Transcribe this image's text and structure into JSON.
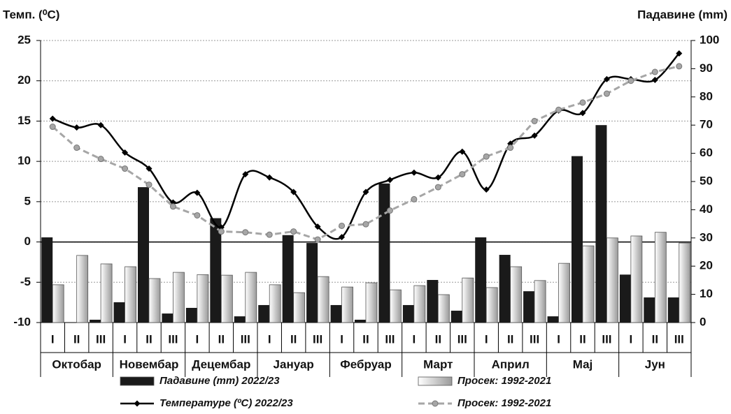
{
  "chart_data": {
    "type": "combo",
    "y_title": "Темп. (⁰C)",
    "y2_title": "Падавине (mm)",
    "categories": [
      "I",
      "II",
      "III",
      "I",
      "II",
      "III",
      "I",
      "II",
      "III",
      "I",
      "II",
      "III",
      "I",
      "II",
      "III",
      "I",
      "II",
      "III",
      "I",
      "II",
      "III",
      "I",
      "II",
      "III",
      "I",
      "II",
      "III"
    ],
    "category_groups": [
      "Октобар",
      "Новембар",
      "Децембар",
      "Јануар",
      "Фебруар",
      "Март",
      "Април",
      "Мај",
      "Јун"
    ],
    "ylim": [
      -10,
      25
    ],
    "yticks": [
      -10,
      -5,
      0,
      5,
      10,
      15,
      20,
      25
    ],
    "y2lim": [
      0,
      100
    ],
    "y2ticks": [
      0,
      10,
      20,
      30,
      40,
      50,
      60,
      70,
      80,
      90,
      100
    ],
    "grid": true,
    "series": [
      {
        "name": "Падавине (mm) 2022/23",
        "type": "bar",
        "axis": "y2",
        "color": "#1a1a1a",
        "values": [
          30.2,
          0,
          1,
          7.2,
          48,
          3.2,
          5.2,
          37,
          2.2,
          6.2,
          31,
          28.2,
          6.2,
          1,
          49.3,
          6.2,
          15.1,
          4.2,
          30.2,
          24,
          11.1,
          2.2,
          59,
          70,
          17,
          8.9,
          8.9
        ]
      },
      {
        "name": "Просек: 1992-2021",
        "type": "bar",
        "axis": "y2",
        "color": "#bfbfbf",
        "values": [
          13.4,
          23.8,
          20.8,
          19.8,
          15.6,
          17.8,
          17,
          16.8,
          17.8,
          13.4,
          10.6,
          16.3,
          12.6,
          14.1,
          11.6,
          13.1,
          9.9,
          15.8,
          12.4,
          19.8,
          14.9,
          21,
          27.2,
          30,
          30.7,
          32,
          28.2
        ]
      },
      {
        "name": "Температуре (ºC) 2022/23",
        "type": "line",
        "axis": "y",
        "color": "#000000",
        "marker": "diamond",
        "smooth": true,
        "values": [
          15.3,
          14.2,
          14.5,
          11.1,
          9.1,
          4.9,
          6.1,
          1.8,
          8.4,
          8.0,
          6.2,
          1.9,
          0.6,
          6.2,
          7.7,
          8.6,
          8.0,
          11.2,
          6.5,
          12.2,
          13.2,
          16.3,
          16.0,
          20.2,
          20.2,
          20.1,
          23.4
        ]
      },
      {
        "name": "Просек: 1992-2021",
        "type": "line",
        "axis": "y",
        "color": "#a6a6a6",
        "marker": "circle",
        "dashed": true,
        "values": [
          14.3,
          11.7,
          10.3,
          9.1,
          7.1,
          4.4,
          3.3,
          1.3,
          1.2,
          0.9,
          1.3,
          0.3,
          2.0,
          2.2,
          3.9,
          5.3,
          6.8,
          8.4,
          10.6,
          11.7,
          15.0,
          16.4,
          17.3,
          18.4,
          20.0,
          21.1,
          21.8
        ]
      }
    ]
  }
}
